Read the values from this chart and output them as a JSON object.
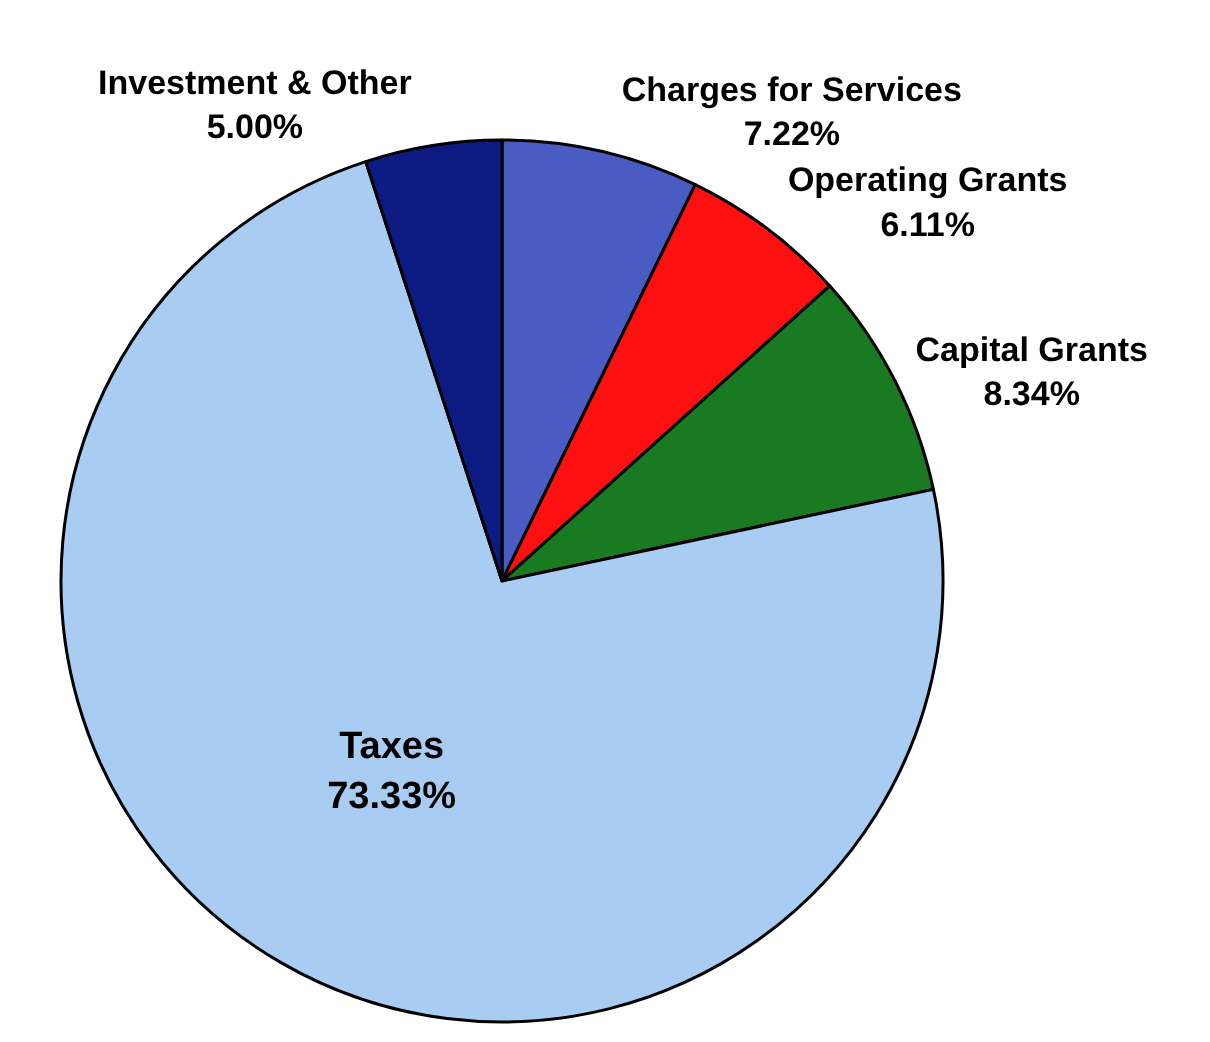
{
  "chart_data": {
    "type": "pie",
    "categories": [
      "Charges for Services",
      "Operating Grants",
      "Capital Grants",
      "Taxes",
      "Investment & Other"
    ],
    "values": [
      7.22,
      6.11,
      8.34,
      73.33,
      5.0
    ],
    "value_labels": [
      "7.22%",
      "6.11%",
      "8.34%",
      "73.33%",
      "5.00%"
    ],
    "colors": [
      "#4a5bc4",
      "#ff1010",
      "#1a7a22",
      "#a9cdf2",
      "#0c1a82"
    ],
    "legend": false
  }
}
